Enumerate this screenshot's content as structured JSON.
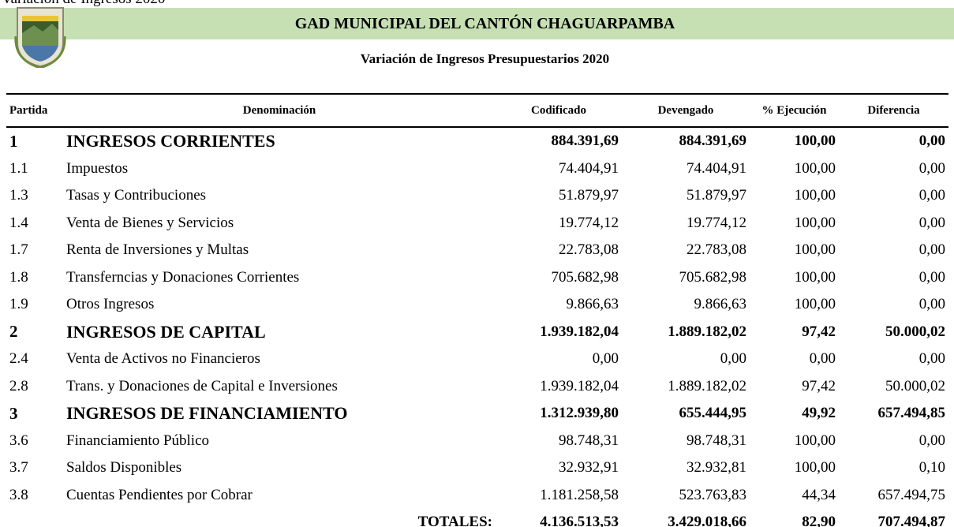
{
  "caption": "Variación de Ingresos 2020",
  "header": {
    "title": "GAD MUNICIPAL DEL CANTÓN CHAGUARPAMBA",
    "subtitle": "Variación de Ingresos Presupuestarios 2020"
  },
  "table": {
    "columns": [
      "Partida",
      "Denominación",
      "Codificado",
      "Devengado",
      "% Ejecución",
      "Diferencia"
    ],
    "rows": [
      [
        "1",
        "INGRESOS CORRIENTES",
        "884.391,69",
        "884.391,69",
        "100,00",
        "0,00"
      ],
      [
        "1.1",
        "Impuestos",
        "74.404,91",
        "74.404,91",
        "100,00",
        "0,00"
      ],
      [
        "1.3",
        "Tasas y Contribuciones",
        "51.879,97",
        "51.879,97",
        "100,00",
        "0,00"
      ],
      [
        "1.4",
        "Venta de Bienes y Servicios",
        "19.774,12",
        "19.774,12",
        "100,00",
        "0,00"
      ],
      [
        "1.7",
        "Renta de Inversiones y Multas",
        "22.783,08",
        "22.783,08",
        "100,00",
        "0,00"
      ],
      [
        "1.8",
        "Transferncias y Donaciones Corrientes",
        "705.682,98",
        "705.682,98",
        "100,00",
        "0,00"
      ],
      [
        "1.9",
        "Otros Ingresos",
        "9.866,63",
        "9.866,63",
        "100,00",
        "0,00"
      ],
      [
        "2",
        "INGRESOS DE CAPITAL",
        "1.939.182,04",
        "1.889.182,02",
        "97,42",
        "50.000,02"
      ],
      [
        "2.4",
        "Venta de Activos no Financieros",
        "0,00",
        "0,00",
        "0,00",
        "0,00"
      ],
      [
        "2.8",
        "Trans. y Donaciones de Capital e Inversiones",
        "1.939.182,04",
        "1.889.182,02",
        "97,42",
        "50.000,02"
      ],
      [
        "3",
        "INGRESOS DE FINANCIAMIENTO",
        "1.312.939,80",
        "655.444,95",
        "49,92",
        "657.494,85"
      ],
      [
        "3.6",
        "Financiamiento Público",
        "98.748,31",
        "98.748,31",
        "100,00",
        "0,00"
      ],
      [
        "3.7",
        "Saldos Disponibles",
        "32.932,91",
        "32.932,81",
        "100,00",
        "0,10"
      ],
      [
        "3.8",
        "Cuentas Pendientes por Cobrar",
        "1.181.258,58",
        "523.763,83",
        "44,34",
        "657.494,75"
      ]
    ],
    "totals": [
      "TOTALES:",
      "4.136.513,53",
      "3.429.018,66",
      "82,90",
      "707.494,87"
    ]
  }
}
